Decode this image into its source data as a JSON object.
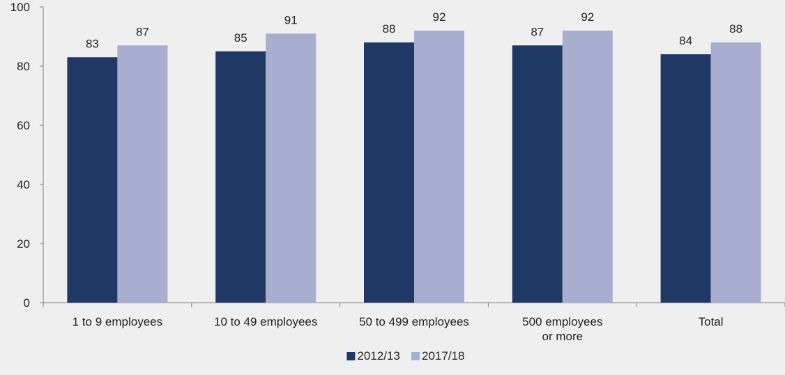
{
  "chart_data": {
    "type": "bar",
    "categories": [
      [
        "1 to 9 employees"
      ],
      [
        "10 to 49 employees"
      ],
      [
        "50 to 499 employees"
      ],
      [
        "500 employees",
        "or more"
      ],
      [
        "Total"
      ]
    ],
    "series": [
      {
        "name": "2012/13",
        "values": [
          83,
          85,
          88,
          87,
          84
        ],
        "value_labels": [
          83,
          85,
          88,
          87,
          84
        ],
        "color": "#1f3864"
      },
      {
        "name": "2017/18",
        "values": [
          87,
          91,
          92,
          92,
          88
        ],
        "value_labels": [
          87,
          91,
          92,
          92,
          88
        ],
        "color": "#a9aed0"
      }
    ],
    "ylim": [
      0,
      100
    ],
    "yticks": [
      0,
      20,
      40,
      60,
      80,
      100
    ],
    "grid": false,
    "legend_position": "bottom-center",
    "background": "#efefef",
    "axis_color": "#7f7f7f"
  }
}
